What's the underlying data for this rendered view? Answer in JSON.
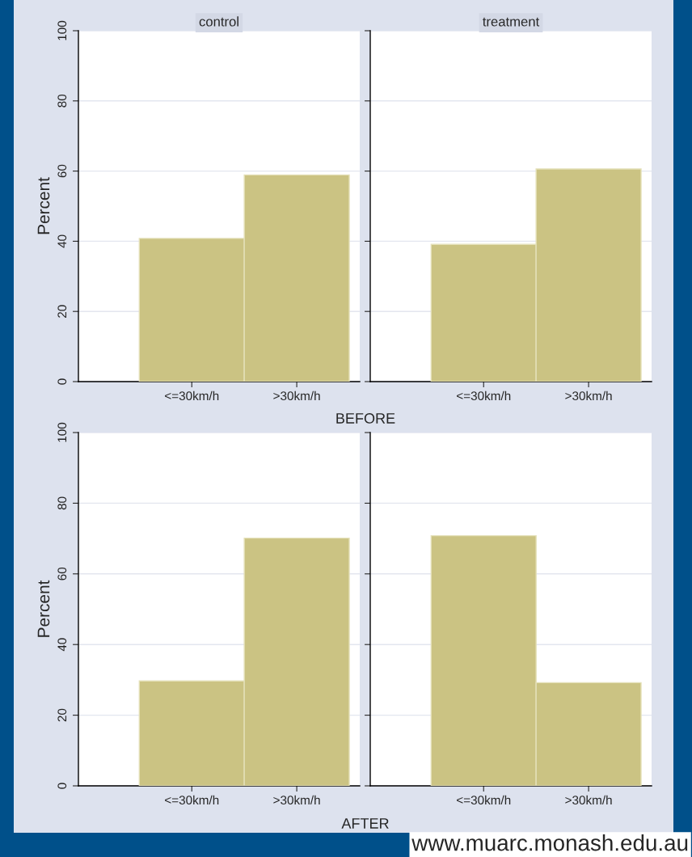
{
  "chart_data": [
    {
      "type": "bar",
      "title": "control",
      "categories": [
        "<=30km/h",
        ">30km/h"
      ],
      "values": [
        40.8,
        58.9
      ],
      "color": "#cbc383",
      "ylabel": "Percent",
      "ylim": [
        0,
        100
      ],
      "yticks": [
        0,
        20,
        40,
        60,
        80,
        100
      ],
      "grid": "y",
      "annotations": [
        "BEFORE"
      ]
    },
    {
      "type": "bar",
      "title": "treatment",
      "categories": [
        "<=30km/h",
        ">30km/h"
      ],
      "values": [
        39.1,
        60.6
      ],
      "color": "#cbc383",
      "ylim": [
        0,
        100
      ],
      "yticks": [
        0,
        20,
        40,
        60,
        80,
        100
      ],
      "grid": "y",
      "tick_labels": "x"
    },
    {
      "type": "bar",
      "categories": [
        "<=30km/h",
        ">30km/h"
      ],
      "values": [
        29.7,
        70.1
      ],
      "color": "#cbc383",
      "ylabel": "Percent",
      "ylim": [
        0,
        100
      ],
      "yticks": [
        0,
        20,
        40,
        60,
        80,
        100
      ],
      "grid": "y",
      "annotations": [
        "AFTER",
        "www.muarc.monash.edu.au"
      ]
    },
    {
      "type": "bar",
      "categories": [
        "<=30km/h",
        ">30km/h"
      ],
      "values": [
        70.8,
        29.2
      ],
      "color": "#cbc383",
      "ylim": [
        0,
        100
      ],
      "yticks": [
        0,
        20,
        40,
        60,
        80,
        100
      ],
      "grid": "y",
      "tick_labels": "x"
    }
  ]
}
